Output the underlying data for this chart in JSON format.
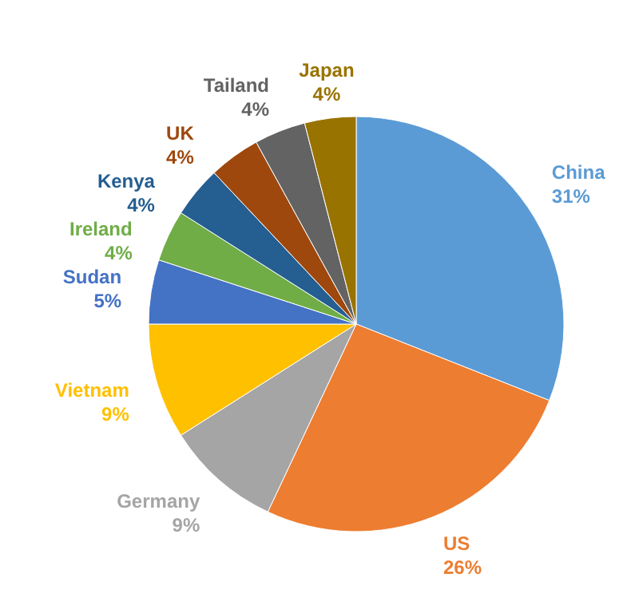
{
  "chart_data": {
    "type": "pie",
    "categories": [
      "China",
      "US",
      "Germany",
      "Vietnam",
      "Sudan",
      "Ireland",
      "Kenya",
      "UK",
      "Tailand",
      "Japan"
    ],
    "values": [
      31,
      26,
      9,
      9,
      5,
      4,
      4,
      4,
      4,
      4
    ],
    "colors": [
      "#5b9bd5",
      "#ed7d31",
      "#a5a5a5",
      "#ffc000",
      "#4472c4",
      "#70ad47",
      "#255e91",
      "#9e480e",
      "#636363",
      "#997300"
    ],
    "value_labels": [
      "31%",
      "26%",
      "9%",
      "9%",
      "5%",
      "4%",
      "4%",
      "4%",
      "4%",
      "4%"
    ]
  }
}
